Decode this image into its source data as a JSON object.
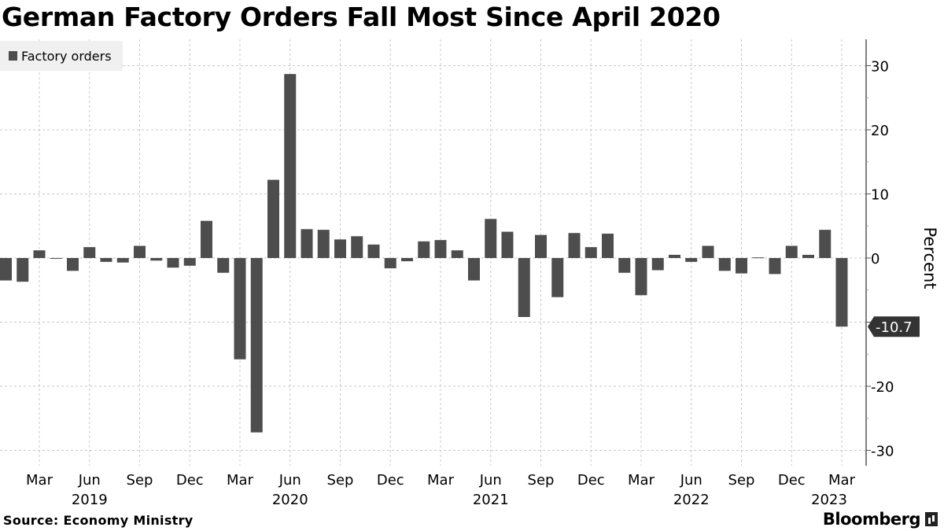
{
  "title": "German Factory Orders Fall Most Since April 2020",
  "source": "Source: Economy Ministry",
  "brand": "Bloomberg",
  "colors": {
    "bar": "#4d4d4d",
    "grid": "#c8c8c8",
    "legend_bg": "#f0f0f0"
  },
  "chart_data": {
    "type": "bar",
    "title": "German Factory Orders Fall Most Since April 2020",
    "ylabel": "Percent",
    "ylim": [
      -33,
      35
    ],
    "yticks": [
      30,
      20,
      10,
      0,
      -10,
      -20,
      -30
    ],
    "ytick_labels": [
      "30",
      "20",
      "10",
      "0",
      "",
      "-20",
      "-30"
    ],
    "legend": {
      "entries": [
        "Factory orders"
      ],
      "placement": "top-left"
    },
    "grid": true,
    "last_value_label": "-10.7",
    "x_start": "2019-01",
    "categories": [
      "Jan 2019",
      "Feb 2019",
      "Mar 2019",
      "Apr 2019",
      "May 2019",
      "Jun 2019",
      "Jul 2019",
      "Aug 2019",
      "Sep 2019",
      "Oct 2019",
      "Nov 2019",
      "Dec 2019",
      "Jan 2020",
      "Feb 2020",
      "Mar 2020",
      "Apr 2020",
      "May 2020",
      "Jun 2020",
      "Jul 2020",
      "Aug 2020",
      "Sep 2020",
      "Oct 2020",
      "Nov 2020",
      "Dec 2020",
      "Jan 2021",
      "Feb 2021",
      "Mar 2021",
      "Apr 2021",
      "May 2021",
      "Jun 2021",
      "Jul 2021",
      "Aug 2021",
      "Sep 2021",
      "Oct 2021",
      "Nov 2021",
      "Dec 2021",
      "Jan 2022",
      "Feb 2022",
      "Mar 2022",
      "Apr 2022",
      "May 2022",
      "Jun 2022",
      "Jul 2022",
      "Aug 2022",
      "Sep 2022",
      "Oct 2022",
      "Nov 2022",
      "Dec 2022",
      "Jan 2023",
      "Feb 2023",
      "Mar 2023"
    ],
    "series": [
      {
        "name": "Factory orders",
        "values": [
          -3.5,
          -3.7,
          1.2,
          -0.1,
          -2.0,
          1.7,
          -0.6,
          -0.7,
          1.9,
          -0.4,
          -1.5,
          -1.2,
          5.8,
          -2.3,
          -15.8,
          -27.2,
          12.2,
          28.7,
          4.5,
          4.4,
          2.9,
          3.4,
          2.1,
          -1.6,
          -0.5,
          2.6,
          2.8,
          1.2,
          -3.5,
          6.1,
          4.1,
          -9.2,
          3.6,
          -6.1,
          3.9,
          1.7,
          3.8,
          -2.3,
          -5.8,
          -1.9,
          0.5,
          -0.6,
          1.9,
          -2.0,
          -2.4,
          0.1,
          -2.5,
          1.9,
          0.5,
          4.4,
          -10.7
        ]
      }
    ],
    "xticks": [
      {
        "index": 2,
        "label": "Mar"
      },
      {
        "index": 5,
        "label": "Jun"
      },
      {
        "index": 8,
        "label": "Sep"
      },
      {
        "index": 11,
        "label": "Dec"
      },
      {
        "index": 14,
        "label": "Mar"
      },
      {
        "index": 17,
        "label": "Jun"
      },
      {
        "index": 20,
        "label": "Sep"
      },
      {
        "index": 23,
        "label": "Dec"
      },
      {
        "index": 26,
        "label": "Mar"
      },
      {
        "index": 29,
        "label": "Jun"
      },
      {
        "index": 32,
        "label": "Sep"
      },
      {
        "index": 35,
        "label": "Dec"
      },
      {
        "index": 38,
        "label": "Mar"
      },
      {
        "index": 41,
        "label": "Jun"
      },
      {
        "index": 44,
        "label": "Sep"
      },
      {
        "index": 47,
        "label": "Dec"
      },
      {
        "index": 50,
        "label": "Mar"
      }
    ],
    "year_labels": [
      {
        "index": 5,
        "label": "2019"
      },
      {
        "index": 17,
        "label": "2020"
      },
      {
        "index": 29,
        "label": "2021"
      },
      {
        "index": 41,
        "label": "2022"
      },
      {
        "index": 50,
        "label": "2023"
      }
    ]
  }
}
